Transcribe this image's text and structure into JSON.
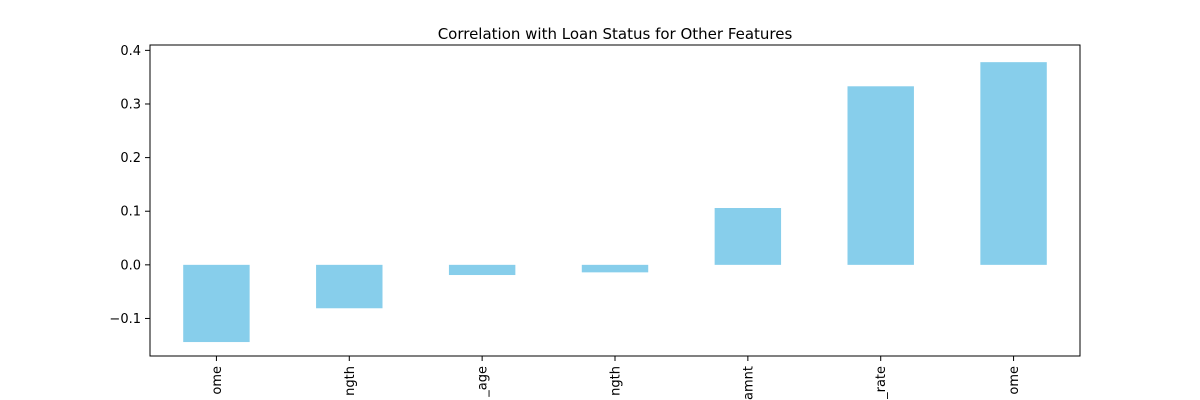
{
  "chart_data": {
    "type": "bar",
    "title": "Correlation with Loan Status for Other Features",
    "xlabel": "",
    "ylabel": "",
    "categories": [
      "ome",
      "ngth",
      "_age",
      "ngth",
      "amnt",
      "_rate",
      "ome"
    ],
    "values": [
      -0.144,
      -0.081,
      -0.019,
      -0.014,
      0.106,
      0.333,
      0.378
    ],
    "ylim": [
      -0.17,
      0.41
    ],
    "yticks": [
      -0.1,
      0.0,
      0.1,
      0.2,
      0.3,
      0.4
    ],
    "ytick_labels": [
      "−0.1",
      "0.0",
      "0.1",
      "0.2",
      "0.3",
      "0.4"
    ],
    "grid": false,
    "legend": "none",
    "colors": {
      "bar": "#87ceeb",
      "axis": "#000000",
      "background": "#ffffff"
    }
  }
}
